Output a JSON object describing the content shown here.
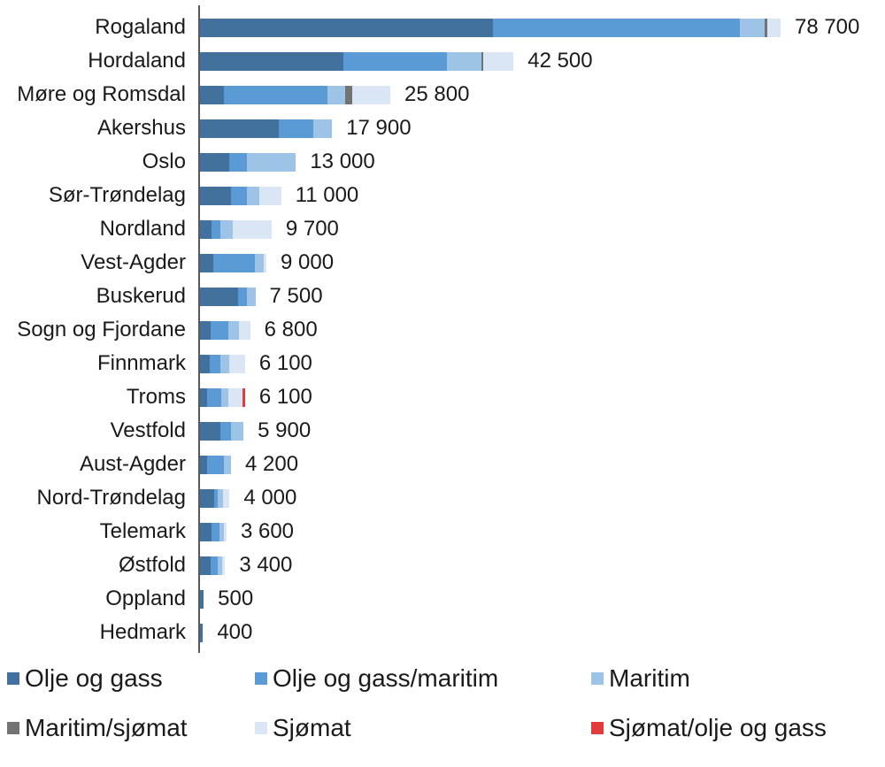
{
  "chart_data": {
    "type": "bar",
    "orientation": "horizontal",
    "stacked": true,
    "title": "",
    "xlabel": "",
    "ylabel": "",
    "xmax": 78700,
    "grid": false,
    "legend_position": "bottom",
    "categories": [
      "Rogaland",
      "Hordaland",
      "Møre og Romsdal",
      "Akershus",
      "Oslo",
      "Sør-Trøndelag",
      "Nordland",
      "Vest-Agder",
      "Buskerud",
      "Sogn og Fjordane",
      "Finnmark",
      "Troms",
      "Vestfold",
      "Aust-Agder",
      "Nord-Trøndelag",
      "Telemark",
      "Østfold",
      "Oppland",
      "Hedmark"
    ],
    "totals": [
      78700,
      42500,
      25800,
      17900,
      13000,
      11000,
      9700,
      9000,
      7500,
      6800,
      6100,
      6100,
      5900,
      4200,
      4000,
      3600,
      3400,
      500,
      400
    ],
    "total_labels": [
      "78 700",
      "42 500",
      "25 800",
      "17 900",
      "13 000",
      "11 000",
      "9 700",
      "9 000",
      "7 500",
      "6 800",
      "6 100",
      "6 100",
      "5 900",
      "4 200",
      "4 000",
      "3 600",
      "3 400",
      "500",
      "400"
    ],
    "series": [
      {
        "name": "Olje og gass",
        "color": "#41719C",
        "values": [
          39700,
          19400,
          3200,
          10700,
          4000,
          4200,
          1600,
          1800,
          5200,
          1400,
          1300,
          1000,
          2800,
          1000,
          1900,
          1550,
          1450,
          500,
          400
        ]
      },
      {
        "name": "Olje og gass/maritim",
        "color": "#5B9BD5",
        "values": [
          33500,
          14100,
          14100,
          4700,
          2400,
          2200,
          1200,
          5600,
          1200,
          2400,
          1500,
          1900,
          1400,
          2300,
          500,
          1100,
          950,
          0,
          0
        ]
      },
      {
        "name": "Maritim",
        "color": "#9DC3E6",
        "values": [
          3400,
          4600,
          2400,
          2500,
          6600,
          1700,
          1700,
          1200,
          1100,
          1500,
          1200,
          900,
          1700,
          900,
          700,
          600,
          600,
          0,
          0
        ]
      },
      {
        "name": "Maritim/sjømat",
        "color": "#737373",
        "values": [
          300,
          300,
          900,
          0,
          0,
          0,
          0,
          0,
          0,
          0,
          0,
          0,
          0,
          0,
          0,
          0,
          0,
          0,
          0
        ]
      },
      {
        "name": "Sjømat",
        "color": "#DAE6F3",
        "values": [
          1800,
          4100,
          5200,
          0,
          0,
          2900,
          5200,
          400,
          0,
          1500,
          2100,
          2000,
          0,
          0,
          900,
          350,
          400,
          0,
          0
        ]
      },
      {
        "name": "Sjømat/olje og gass",
        "color": "#E23B3C",
        "values": [
          0,
          0,
          0,
          0,
          0,
          0,
          0,
          0,
          0,
          0,
          0,
          300,
          0,
          0,
          0,
          0,
          0,
          0,
          0
        ]
      }
    ],
    "legend_rows": [
      [
        0,
        1,
        2
      ],
      [
        3,
        4,
        5
      ]
    ]
  }
}
